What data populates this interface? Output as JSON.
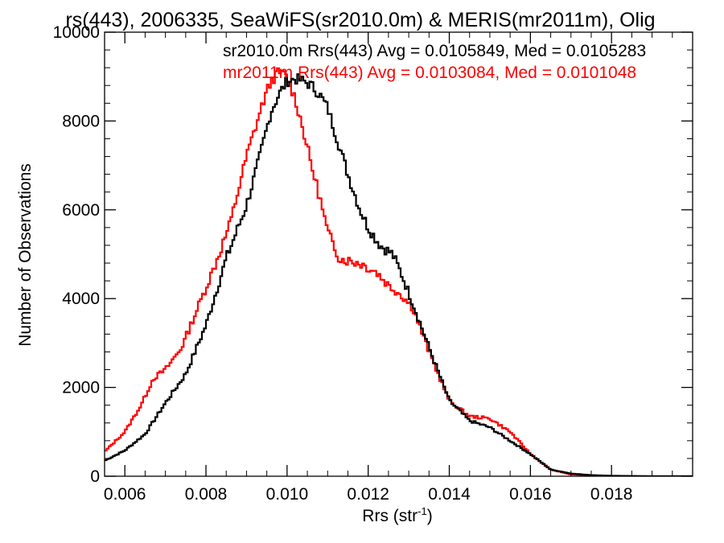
{
  "chart_data": {
    "type": "line",
    "title": "rs(443), 2006335, SeaWiFS(sr2010.0m) & MERIS(mr2011m), Olig",
    "xlabel": "Rrs (str",
    "xlabel_superscript": "-1",
    "xlabel_close": ")",
    "ylabel": "Number of Observations",
    "xlim": [
      0.0055,
      0.02
    ],
    "ylim": [
      0,
      10000
    ],
    "xticks": [
      {
        "value": 0.006,
        "label": "0.006"
      },
      {
        "value": 0.008,
        "label": "0.008"
      },
      {
        "value": 0.01,
        "label": "0.010"
      },
      {
        "value": 0.012,
        "label": "0.012"
      },
      {
        "value": 0.014,
        "label": "0.014"
      },
      {
        "value": 0.016,
        "label": "0.016"
      },
      {
        "value": 0.018,
        "label": "0.018"
      }
    ],
    "yticks": [
      {
        "value": 0,
        "label": "0"
      },
      {
        "value": 2000,
        "label": "2000"
      },
      {
        "value": 4000,
        "label": "4000"
      },
      {
        "value": 6000,
        "label": "6000"
      },
      {
        "value": 8000,
        "label": "8000"
      },
      {
        "value": 10000,
        "label": "10000"
      }
    ],
    "grid": false,
    "legend_position": "top-right",
    "series": [
      {
        "name": "sr2010.0m",
        "legend_text": "sr2010.0m Rrs(443) Avg = 0.0105849, Med = 0.0105283",
        "color": "#000000",
        "points": [
          [
            0.0055,
            350
          ],
          [
            0.006,
            580
          ],
          [
            0.0065,
            950
          ],
          [
            0.007,
            1650
          ],
          [
            0.0075,
            2300
          ],
          [
            0.008,
            3400
          ],
          [
            0.0085,
            4900
          ],
          [
            0.009,
            6100
          ],
          [
            0.0093,
            7100
          ],
          [
            0.0096,
            8200
          ],
          [
            0.0098,
            8600
          ],
          [
            0.01,
            8900
          ],
          [
            0.0102,
            8950
          ],
          [
            0.0104,
            8900
          ],
          [
            0.0106,
            8800
          ],
          [
            0.0108,
            8600
          ],
          [
            0.011,
            8300
          ],
          [
            0.0112,
            7700
          ],
          [
            0.0115,
            6800
          ],
          [
            0.0118,
            6000
          ],
          [
            0.012,
            5600
          ],
          [
            0.0123,
            5200
          ],
          [
            0.0126,
            5000
          ],
          [
            0.0128,
            4600
          ],
          [
            0.0131,
            3900
          ],
          [
            0.0135,
            2900
          ],
          [
            0.014,
            1700
          ],
          [
            0.0145,
            1250
          ],
          [
            0.015,
            1100
          ],
          [
            0.0155,
            800
          ],
          [
            0.016,
            500
          ],
          [
            0.0165,
            150
          ],
          [
            0.017,
            60
          ],
          [
            0.0175,
            25
          ],
          [
            0.018,
            10
          ],
          [
            0.019,
            0
          ],
          [
            0.02,
            0
          ]
        ]
      },
      {
        "name": "mr2011m",
        "legend_text": "mr2011m Rrs(443) Avg = 0.0103084, Med = 0.0101048",
        "color": "#ff0000",
        "points": [
          [
            0.0055,
            550
          ],
          [
            0.006,
            1000
          ],
          [
            0.0064,
            1600
          ],
          [
            0.0067,
            2200
          ],
          [
            0.007,
            2400
          ],
          [
            0.0074,
            2900
          ],
          [
            0.0078,
            3800
          ],
          [
            0.0082,
            4700
          ],
          [
            0.0086,
            5700
          ],
          [
            0.009,
            7200
          ],
          [
            0.0092,
            7800
          ],
          [
            0.0094,
            8400
          ],
          [
            0.0096,
            8900
          ],
          [
            0.0098,
            9100
          ],
          [
            0.01,
            9000
          ],
          [
            0.0102,
            8500
          ],
          [
            0.0104,
            7800
          ],
          [
            0.0106,
            7000
          ],
          [
            0.0108,
            6300
          ],
          [
            0.011,
            5500
          ],
          [
            0.0113,
            4900
          ],
          [
            0.0118,
            4800
          ],
          [
            0.0122,
            4600
          ],
          [
            0.0125,
            4300
          ],
          [
            0.0128,
            4100
          ],
          [
            0.0131,
            3800
          ],
          [
            0.0135,
            2800
          ],
          [
            0.014,
            1700
          ],
          [
            0.0145,
            1350
          ],
          [
            0.015,
            1300
          ],
          [
            0.0155,
            1000
          ],
          [
            0.016,
            500
          ],
          [
            0.0165,
            150
          ],
          [
            0.017,
            40
          ],
          [
            0.018,
            5
          ],
          [
            0.019,
            0
          ],
          [
            0.02,
            0
          ]
        ]
      }
    ]
  }
}
